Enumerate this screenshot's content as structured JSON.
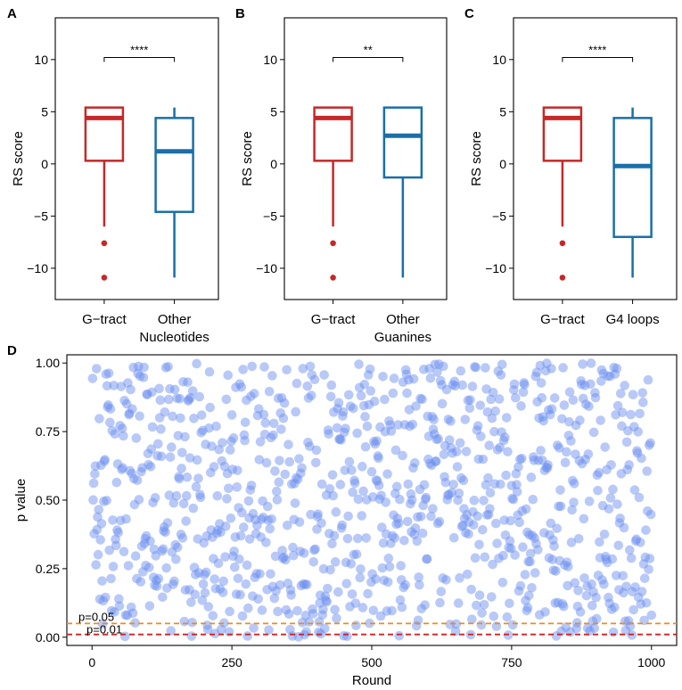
{
  "colors": {
    "gtract": "#c62828",
    "other": "#1a6fa8",
    "scatter": "#6a8ff0",
    "thr05": "#f08a1c",
    "thr01": "#d62020"
  },
  "chart_data": [
    {
      "panel": "A",
      "type": "box",
      "ylabel": "RS score",
      "ylim": [
        -13,
        14
      ],
      "yticks": [
        "10",
        "5",
        "0",
        "-5",
        "-10"
      ],
      "categories": [
        "G-tract",
        "Other Nucleotides"
      ],
      "cat_lines": [
        [
          "G−tract"
        ],
        [
          "Other",
          "Nucleotides"
        ]
      ],
      "tick_labels": [
        "10",
        "5",
        "0",
        "−5",
        "−10"
      ],
      "boxes": [
        {
          "name": "G-tract",
          "q1": 0.3,
          "median": 4.4,
          "q3": 5.4,
          "whisker_low": -6.0,
          "whisker_high": 5.4,
          "outliers": [
            -7.6,
            -10.9
          ]
        },
        {
          "name": "Other Nucleotides",
          "q1": -4.6,
          "median": 1.2,
          "q3": 4.4,
          "whisker_low": -10.9,
          "whisker_high": 5.4,
          "outliers": []
        }
      ],
      "significance": "****"
    },
    {
      "panel": "B",
      "type": "box",
      "ylabel": "RS score",
      "ylim": [
        -13,
        14
      ],
      "yticks": [
        "10",
        "5",
        "0",
        "-5",
        "-10"
      ],
      "categories": [
        "G-tract",
        "Other Guanines"
      ],
      "cat_lines": [
        [
          "G−tract"
        ],
        [
          "Other",
          "Guanines"
        ]
      ],
      "tick_labels": [
        "10",
        "5",
        "0",
        "−5",
        "−10"
      ],
      "boxes": [
        {
          "name": "G-tract",
          "q1": 0.3,
          "median": 4.4,
          "q3": 5.4,
          "whisker_low": -6.0,
          "whisker_high": 5.4,
          "outliers": [
            -7.6,
            -10.9
          ]
        },
        {
          "name": "Other Guanines",
          "q1": -1.3,
          "median": 2.7,
          "q3": 5.4,
          "whisker_low": -10.9,
          "whisker_high": 5.4,
          "outliers": []
        }
      ],
      "significance": "**"
    },
    {
      "panel": "C",
      "type": "box",
      "ylabel": "RS score",
      "ylim": [
        -13,
        14
      ],
      "yticks": [
        "10",
        "5",
        "0",
        "-5",
        "-10"
      ],
      "categories": [
        "G-tract",
        "G4 loops"
      ],
      "cat_lines": [
        [
          "G−tract"
        ],
        [
          "G4 loops"
        ]
      ],
      "tick_labels": [
        "10",
        "5",
        "0",
        "−5",
        "−10"
      ],
      "boxes": [
        {
          "name": "G-tract",
          "q1": 0.3,
          "median": 4.4,
          "q3": 5.4,
          "whisker_low": -6.0,
          "whisker_high": 5.4,
          "outliers": [
            -7.6,
            -10.9
          ]
        },
        {
          "name": "G4 loops",
          "q1": -7.0,
          "median": -0.2,
          "q3": 4.4,
          "whisker_low": -10.9,
          "whisker_high": 5.4,
          "outliers": []
        }
      ],
      "significance": "****"
    },
    {
      "panel": "D",
      "type": "scatter",
      "xlabel": "Round",
      "ylabel": "p value",
      "xlim": [
        -45,
        1045
      ],
      "ylim": [
        -0.03,
        1.03
      ],
      "xticks": [
        0,
        250,
        500,
        750,
        1000
      ],
      "yticks": [
        0.0,
        0.25,
        0.5,
        0.75,
        1.0
      ],
      "xtick_labels": [
        "0",
        "250",
        "500",
        "750",
        "1000"
      ],
      "ytick_labels": [
        "0.00",
        "0.25",
        "0.50",
        "0.75",
        "1.00"
      ],
      "n_points": 1000,
      "distribution": "uniform p values in [0,1], one per round (rounds 1-1000)",
      "thresholds": [
        {
          "label": "p=0.05",
          "value": 0.05
        },
        {
          "label": "p=0.01",
          "value": 0.01
        }
      ]
    }
  ]
}
